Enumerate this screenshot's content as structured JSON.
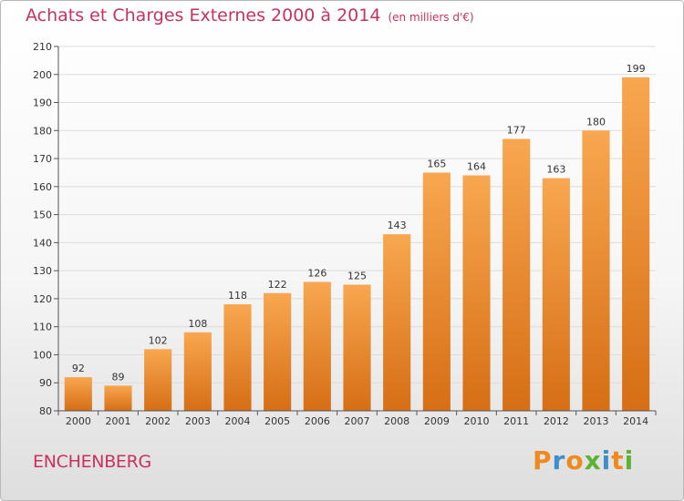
{
  "title": "Achats et Charges Externes 2000 à 2014",
  "unit": "(en milliers d'€)",
  "town": "ENCHENBERG",
  "logo": {
    "text": "Proxiti",
    "letters": [
      "P",
      "r",
      "o",
      "x",
      "i",
      "t",
      "i"
    ],
    "colors": [
      "#ef8a1e",
      "#3d8fcc",
      "#ef8a1e",
      "#5fb333",
      "#3d8fcc",
      "#ef8a1e",
      "#5fb333"
    ]
  },
  "colors": {
    "bar_light": "#f8a750",
    "bar_dark": "#d66e15",
    "title": "#c8325e",
    "grid": "#dcdcdc"
  },
  "chart_data": {
    "type": "bar",
    "title": "Achats et Charges Externes 2000 à 2014",
    "xlabel": "",
    "ylabel": "",
    "categories": [
      "2000",
      "2001",
      "2002",
      "2003",
      "2004",
      "2005",
      "2006",
      "2007",
      "2008",
      "2009",
      "2010",
      "2011",
      "2012",
      "2013",
      "2014"
    ],
    "values": [
      92,
      89,
      102,
      108,
      118,
      122,
      126,
      125,
      143,
      165,
      164,
      177,
      163,
      180,
      199
    ],
    "ylim": [
      80,
      210
    ],
    "yticks": [
      80,
      90,
      100,
      110,
      120,
      130,
      140,
      150,
      160,
      170,
      180,
      190,
      200,
      210
    ],
    "grid": true,
    "data_labels": true
  }
}
